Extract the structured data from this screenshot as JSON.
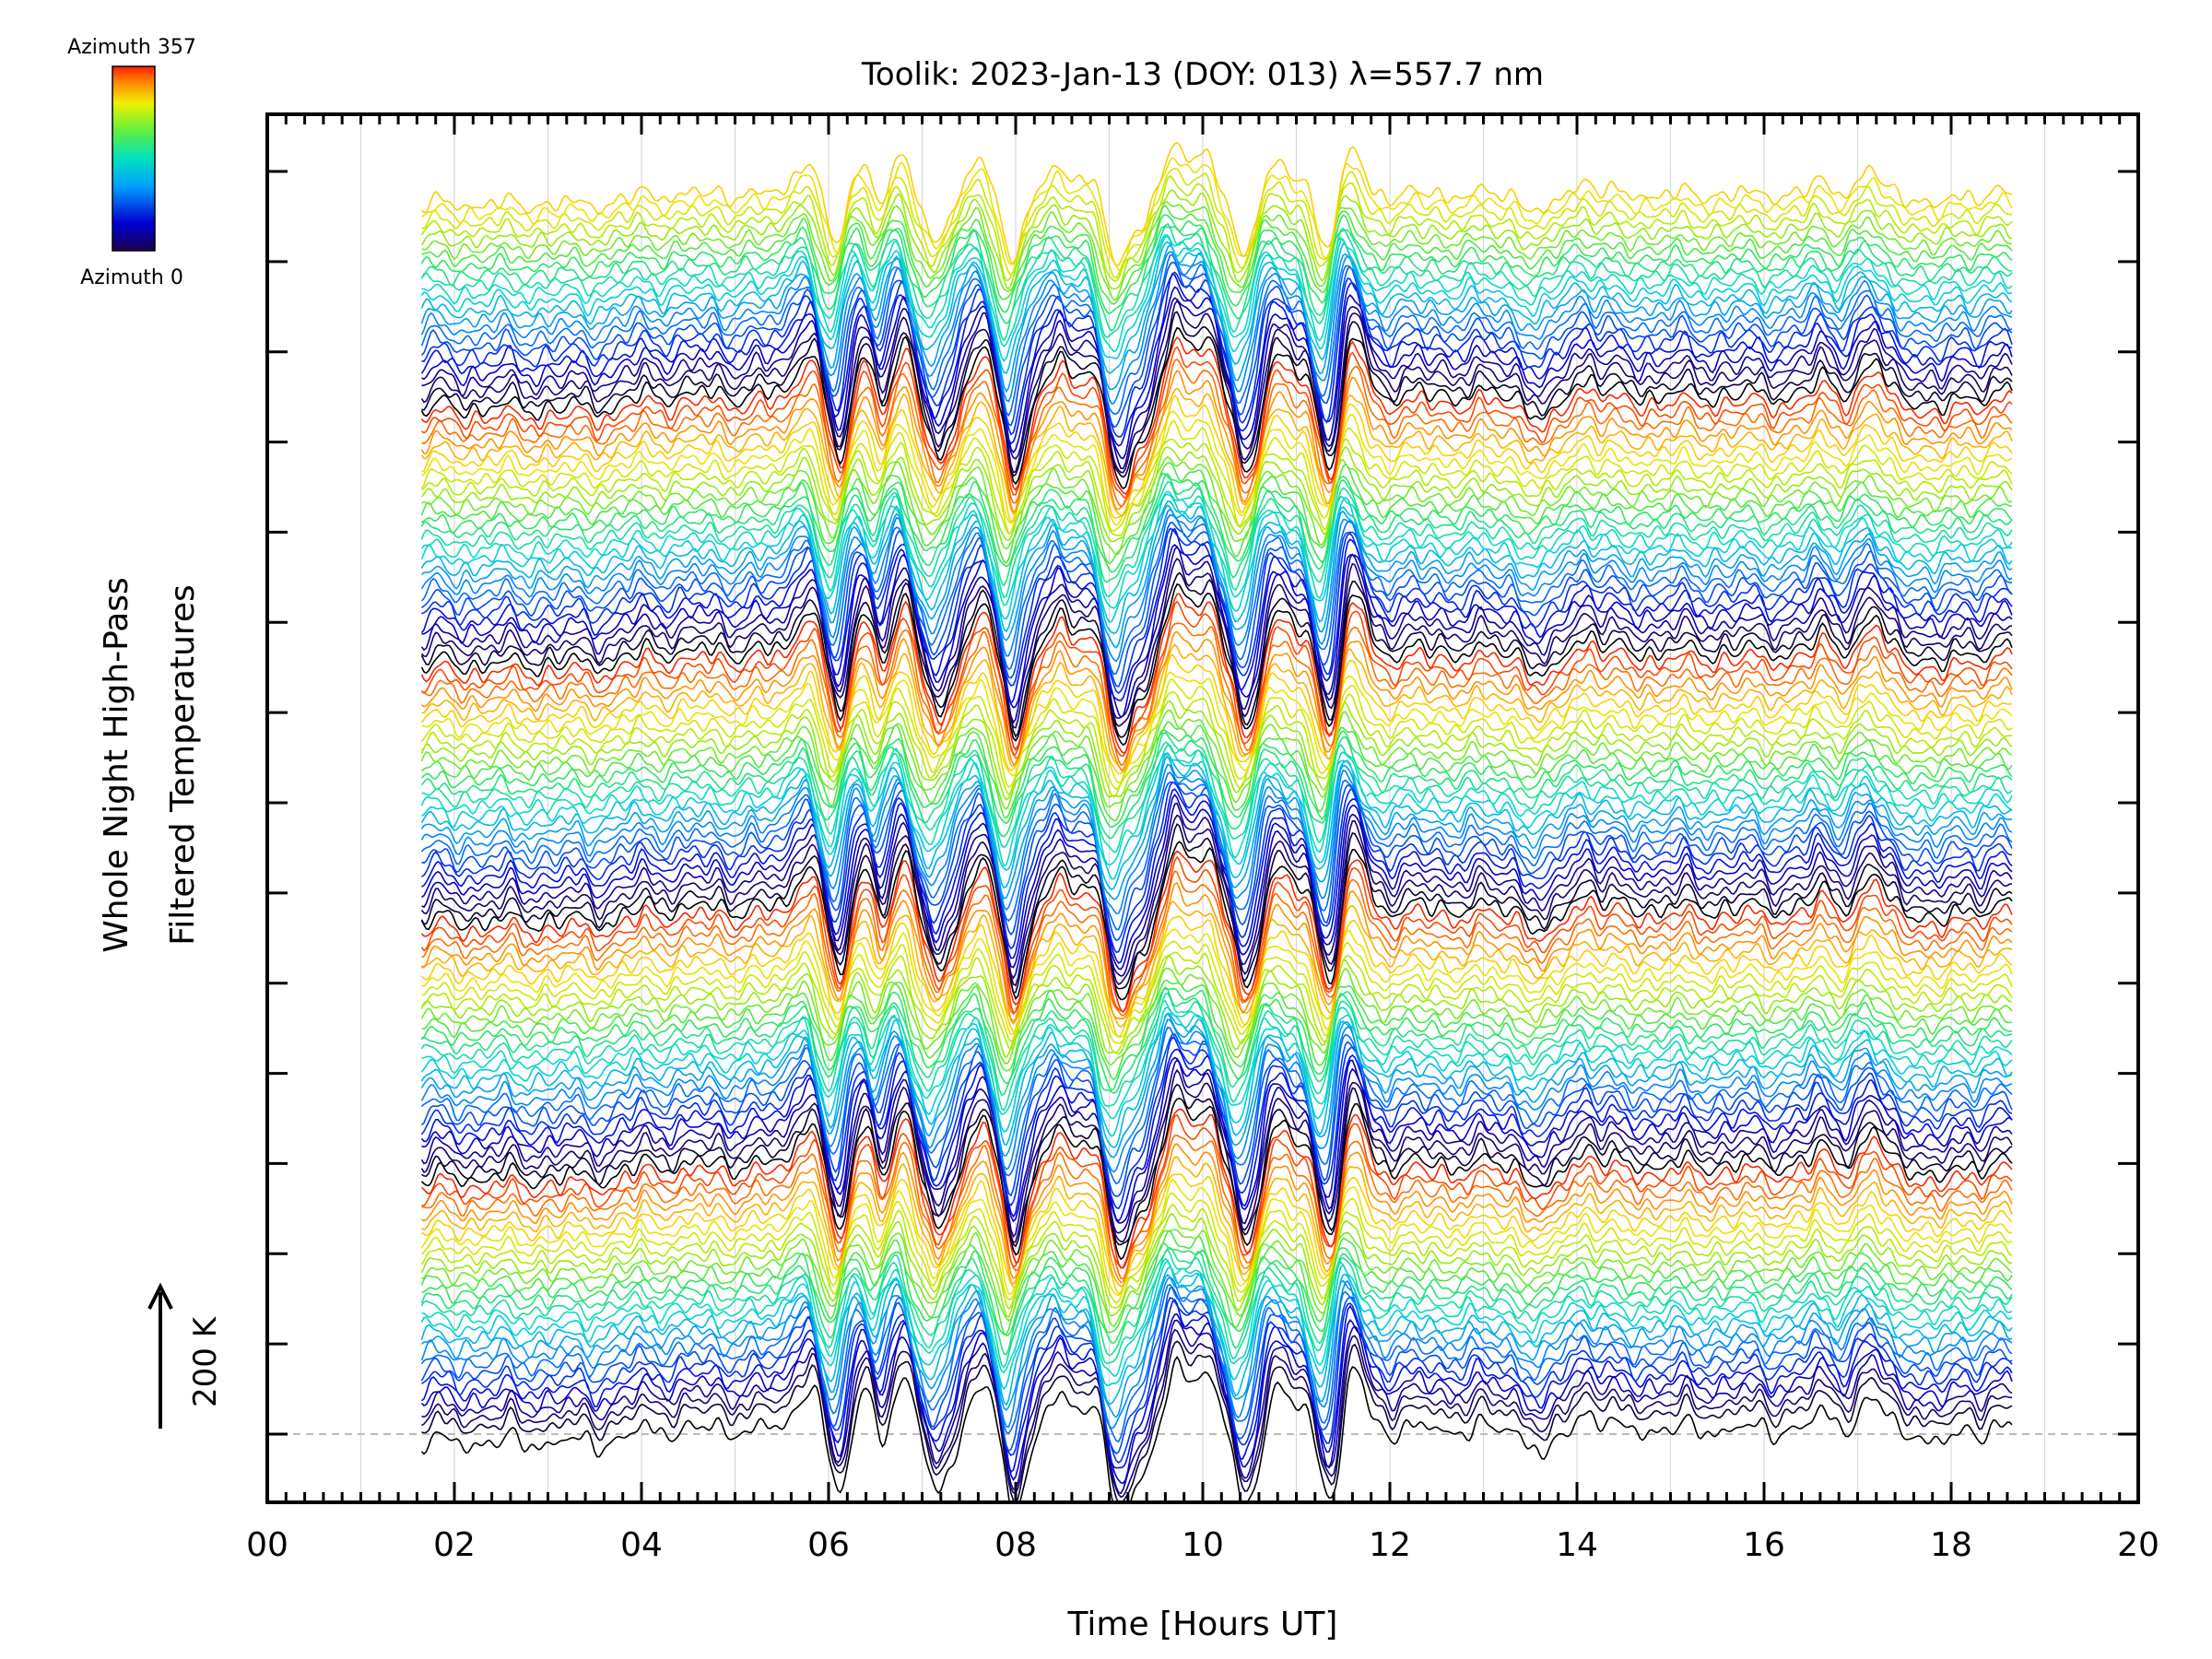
{
  "chart_data": {
    "type": "line",
    "title": "Toolik: 2023-Jan-13 (DOY: 013) λ=557.7 nm",
    "xlabel": "Time [Hours UT]",
    "ylabel_line1": "Whole Night High-Pass",
    "ylabel_line2": "Filtered Temperatures",
    "xlim": [
      0,
      20
    ],
    "x_ticks": [
      0,
      2,
      4,
      6,
      8,
      10,
      12,
      14,
      16,
      18,
      20
    ],
    "x_tick_labels": [
      "00",
      "02",
      "04",
      "06",
      "08",
      "10",
      "12",
      "14",
      "16",
      "18",
      "20"
    ],
    "y_ticks_count": 15,
    "grid": "vertical",
    "series_count": 140,
    "series_per_cycle": 29,
    "time_range_hours": [
      1.65,
      18.65
    ],
    "azimuth_range_deg": [
      0,
      357
    ],
    "colorscale": "rainbow",
    "colorbar": {
      "top_label": "Azimuth 357",
      "bottom_label": "Azimuth 0",
      "placement": "top-left"
    },
    "scale_bar": {
      "label": "200 K",
      "placement": "bottom-left"
    },
    "baseline": {
      "style": "dashed",
      "color": "#bbbbbb"
    },
    "signal_events": [
      {
        "t": 5.75,
        "amplitude_K": 70
      },
      {
        "t": 6.05,
        "amplitude_K": -95
      },
      {
        "t": 6.35,
        "amplitude_K": 80
      },
      {
        "t": 6.55,
        "amplitude_K": -55
      },
      {
        "t": 6.75,
        "amplitude_K": 85
      },
      {
        "t": 7.05,
        "amplitude_K": -60
      },
      {
        "t": 7.25,
        "amplitude_K": -40
      },
      {
        "t": 7.6,
        "amplitude_K": 70
      },
      {
        "t": 7.95,
        "amplitude_K": -115
      },
      {
        "t": 8.4,
        "amplitude_K": 55
      },
      {
        "t": 8.75,
        "amplitude_K": 30
      },
      {
        "t": 9.05,
        "amplitude_K": -110
      },
      {
        "t": 9.3,
        "amplitude_K": -50
      },
      {
        "t": 9.7,
        "amplitude_K": 90
      },
      {
        "t": 10.0,
        "amplitude_K": 70
      },
      {
        "t": 10.4,
        "amplitude_K": -105
      },
      {
        "t": 10.75,
        "amplitude_K": 55
      },
      {
        "t": 11.05,
        "amplitude_K": 20
      },
      {
        "t": 11.35,
        "amplitude_K": -125
      },
      {
        "t": 11.52,
        "amplitude_K": 115
      },
      {
        "t": 13.6,
        "amplitude_K": -40
      },
      {
        "t": 14.05,
        "amplitude_K": 25
      },
      {
        "t": 16.6,
        "amplitude_K": 20
      },
      {
        "t": 17.1,
        "amplitude_K": 40
      },
      {
        "t": 17.8,
        "amplitude_K": -25
      }
    ]
  }
}
